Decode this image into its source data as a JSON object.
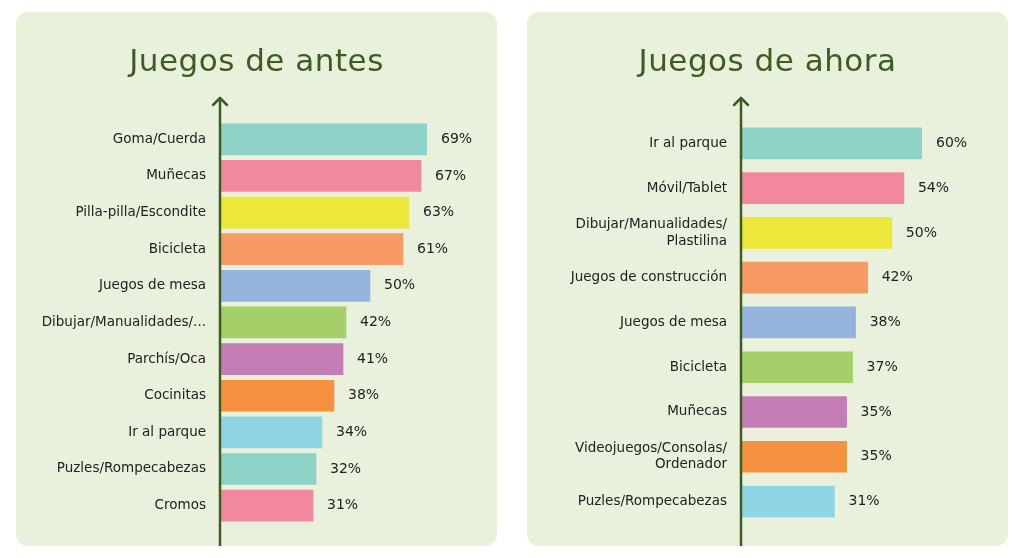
{
  "chart_data": [
    {
      "type": "bar",
      "orientation": "horizontal",
      "title": "Juegos de antes",
      "categories": [
        "Goma/Cuerda",
        "Muñecas",
        "Pilla-pilla/Escondite",
        "Bicicleta",
        "Juegos de mesa",
        "Dibujar/Manualidades/...",
        "Parchís/Oca",
        "Cocinitas",
        "Ir al parque",
        "Puzles/Rompecabezas",
        "Cromos"
      ],
      "values": [
        69,
        67,
        63,
        61,
        50,
        42,
        41,
        38,
        34,
        32,
        31
      ],
      "value_labels": [
        "69%",
        "67%",
        "63%",
        "61%",
        "50%",
        "42%",
        "41%",
        "38%",
        "34%",
        "32%",
        "31%"
      ],
      "colors": [
        "#8dd3c7",
        "#f2889d",
        "#ece83a",
        "#f79a65",
        "#96b5de",
        "#a4cf69",
        "#c57db5",
        "#f4923f",
        "#8fd5e3",
        "#8dd3c7",
        "#f2889d"
      ],
      "tick_labels": "y",
      "grid": false,
      "legend": false
    },
    {
      "type": "bar",
      "orientation": "horizontal",
      "title": "Juegos de ahora",
      "categories": [
        "Ir al parque",
        "Móvil/Tablet",
        "Dibujar/Manualidades/\nPlastilina",
        "Juegos de construcción",
        "Juegos de mesa",
        "Bicicleta",
        "Muñecas",
        "Videojuegos/Consolas/\nOrdenador",
        "Puzles/Rompecabezas"
      ],
      "values": [
        60,
        54,
        50,
        42,
        38,
        37,
        35,
        35,
        31
      ],
      "value_labels": [
        "60%",
        "54%",
        "50%",
        "42%",
        "38%",
        "37%",
        "35%",
        "35%",
        "31%"
      ],
      "colors": [
        "#8dd3c7",
        "#f2889d",
        "#ece83a",
        "#f79a65",
        "#96b5de",
        "#a4cf69",
        "#c57db5",
        "#f4923f",
        "#8fd5e3"
      ],
      "tick_labels": "y",
      "grid": false,
      "legend": false
    }
  ]
}
